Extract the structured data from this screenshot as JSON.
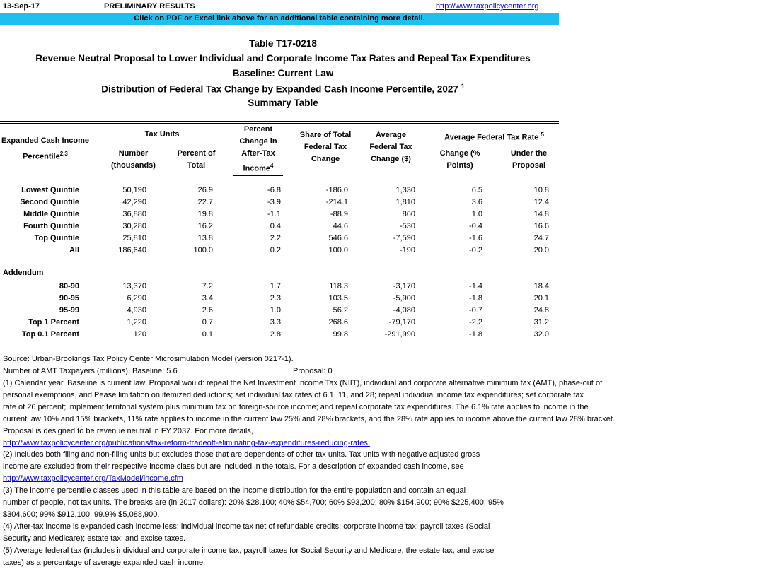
{
  "header": {
    "date": "13-Sep-17",
    "status": "PRELIMINARY RESULTS",
    "link": "http://www.taxpolicycenter.org",
    "banner": "Click on PDF or Excel link above for an additional table containing more detail.",
    "banner_color": "#1ec0f0"
  },
  "titles": [
    "Table T17-0218",
    "Revenue Neutral Proposal to Lower Individual and Corporate Income Tax Rates and Repeal Tax Expenditures",
    "Baseline: Current Law",
    "Distribution of Federal Tax Change by Expanded Cash Income Percentile, 2027",
    "Summary Table"
  ],
  "title_sup": "1",
  "columns": {
    "percentile": "Expanded Cash Income",
    "percentile2": "Percentile",
    "percentile_sup": "2,3",
    "tax_units": "Tax Units",
    "number": "Number",
    "number2": "(thousands)",
    "pct_total": "Percent of",
    "pct_total2": "Total",
    "pct_change1": "Percent",
    "pct_change2": "Change in",
    "pct_change3": "After-Tax",
    "pct_change4": "Income",
    "pct_change_sup": "4",
    "share1": "Share of Total",
    "share2": "Federal Tax",
    "share3": "Change",
    "avg1": "Average",
    "avg2": "Federal Tax",
    "avg3": "Change ($)",
    "rate": "Average Federal Tax Rate",
    "rate_sup": "5",
    "chg1": "Change (%",
    "chg2": "Points)",
    "under1": "Under the",
    "under2": "Proposal"
  },
  "rows": [
    [
      "Lowest Quintile",
      "50,190",
      "26.9",
      "-6.8",
      "-186.0",
      "1,330",
      "6.5",
      "10.8"
    ],
    [
      "Second Quintile",
      "42,290",
      "22.7",
      "-3.9",
      "-214.1",
      "1,810",
      "3.6",
      "12.4"
    ],
    [
      "Middle Quintile",
      "36,880",
      "19.8",
      "-1.1",
      "-88.9",
      "860",
      "1.0",
      "14.8"
    ],
    [
      "Fourth Quintile",
      "30,280",
      "16.2",
      "0.4",
      "44.6",
      "-530",
      "-0.4",
      "16.6"
    ],
    [
      "Top Quintile",
      "25,810",
      "13.8",
      "2.2",
      "546.6",
      "-7,590",
      "-1.6",
      "24.7"
    ],
    [
      "All",
      "186,640",
      "100.0",
      "0.2",
      "100.0",
      "-190",
      "-0.2",
      "20.0"
    ]
  ],
  "addendum_label": "Addendum",
  "addendum": [
    [
      "80-90",
      "13,370",
      "7.2",
      "1.7",
      "118.3",
      "-3,170",
      "-1.4",
      "18.4"
    ],
    [
      "90-95",
      "6,290",
      "3.4",
      "2.3",
      "103.5",
      "-5,900",
      "-1.8",
      "20.1"
    ],
    [
      "95-99",
      "4,930",
      "2.6",
      "1.0",
      "56.2",
      "-4,080",
      "-0.7",
      "24.8"
    ],
    [
      "Top 1 Percent",
      "1,220",
      "0.7",
      "3.3",
      "268.6",
      "-79,170",
      "-2.2",
      "31.2"
    ],
    [
      "Top 0.1 Percent",
      "120",
      "0.1",
      "2.8",
      "99.8",
      "-291,990",
      "-1.8",
      "32.0"
    ]
  ],
  "notes": {
    "source": "Source: Urban-Brookings Tax Policy Center Microsimulation Model (version 0217-1).",
    "amt": "Number of AMT Taxpayers (millions).  Baseline: 5.6",
    "amt_proposal": "Proposal: 0",
    "lines": [
      "(1) Calendar year. Baseline is current law. Proposal would: repeal the Net Investment Income Tax (NIIT), individual and corporate alternative minimum tax (AMT), phase-out of",
      "personal exemptions, and Pease limitation on itemized deductions; set individual tax rates of 6.1, 11, and 28; repeal individual income tax expenditures; set corporate tax",
      "rate of 26 percent; implement territorial system plus minimum tax on foreign-source income; and repeal corporate tax expenditures. The 6.1% rate applies to income in the",
      "current law 10% and 15% brackets, 11% rate applies to income in the current law 25% and 28% brackets, and the 28% rate applies to income above the current law 28% bracket.",
      "Proposal is designed to be revenue neutral in FY 2037. For more details,",
      "http://www.taxpolicycenter.org/publications/tax-reform-tradeoff-eliminating-tax-expenditures-reducing-rates.",
      "(2) Includes both filing and non-filing units but excludes those that are dependents of other tax units. Tax units with negative adjusted gross",
      "income are excluded from their respective income class but are included in the totals. For a description of expanded cash income, see",
      "http://www.taxpolicycenter.org/TaxModel/income.cfm",
      "(3) The income percentile classes used in this table are based on the income distribution for the entire population and contain an equal",
      "number of people, not tax units. The breaks are (in 2017 dollars): 20% $28,100; 40% $54,700; 60% $93,200; 80% $154,900; 90% $225,400; 95%",
      "$304,600; 99% $912,100; 99.9% $5,088,900.",
      "(4) After-tax income is expanded cash income less: individual income tax net of refundable credits; corporate income tax; payroll taxes (Social",
      "Security and Medicare); estate tax; and excise taxes.",
      "(5) Average federal tax (includes individual and corporate income tax, payroll taxes for Social Security and Medicare, the estate tax, and excise",
      "taxes) as a percentage of average expanded cash income."
    ]
  }
}
